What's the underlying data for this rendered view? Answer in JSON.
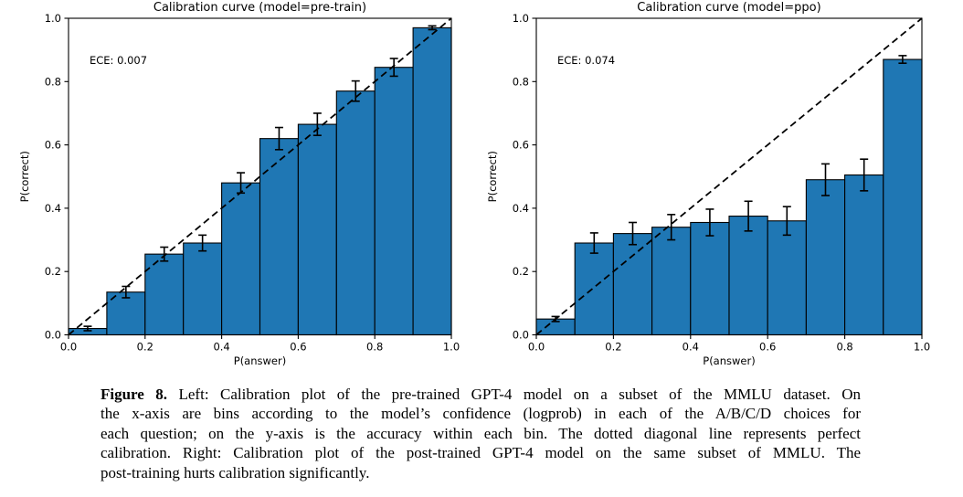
{
  "page": {
    "background_color": "#ffffff",
    "text_color": "#000000"
  },
  "chart_data": [
    {
      "type": "bar",
      "title": "Calibration curve (model=pre-train)",
      "annotation": "ECE: 0.007",
      "xlabel": "P(answer)",
      "ylabel": "P(correct)",
      "xlim": [
        0,
        1
      ],
      "ylim": [
        0,
        1
      ],
      "x_tick_labels": [
        "0.0",
        "0.2",
        "0.4",
        "0.6",
        "0.8",
        "1.0"
      ],
      "y_tick_labels": [
        "0.0",
        "0.2",
        "0.4",
        "0.6",
        "0.8",
        "1.0"
      ],
      "bin_width": 0.1,
      "bin_left_edges": [
        0.0,
        0.1,
        0.2,
        0.3,
        0.4,
        0.5,
        0.6,
        0.7,
        0.8,
        0.9
      ],
      "values": [
        0.02,
        0.135,
        0.255,
        0.29,
        0.48,
        0.62,
        0.665,
        0.77,
        0.845,
        0.97
      ],
      "errors": [
        0.007,
        0.018,
        0.022,
        0.025,
        0.032,
        0.035,
        0.035,
        0.032,
        0.028,
        0.006
      ],
      "diagonal_line": {
        "from": [
          0,
          0
        ],
        "to": [
          1,
          1
        ],
        "style": "dashed",
        "color": "#000000"
      },
      "bar_color": "#1f77b4",
      "edge_color": "#000000",
      "grid": false,
      "legend": null
    },
    {
      "type": "bar",
      "title": "Calibration curve (model=ppo)",
      "annotation": "ECE: 0.074",
      "xlabel": "P(answer)",
      "ylabel": "P(correct)",
      "xlim": [
        0,
        1
      ],
      "ylim": [
        0,
        1
      ],
      "x_tick_labels": [
        "0.0",
        "0.2",
        "0.4",
        "0.6",
        "0.8",
        "1.0"
      ],
      "y_tick_labels": [
        "0.0",
        "0.2",
        "0.4",
        "0.6",
        "0.8",
        "1.0"
      ],
      "bin_width": 0.1,
      "bin_left_edges": [
        0.0,
        0.1,
        0.2,
        0.3,
        0.4,
        0.5,
        0.6,
        0.7,
        0.8,
        0.9
      ],
      "values": [
        0.05,
        0.29,
        0.32,
        0.34,
        0.355,
        0.375,
        0.36,
        0.49,
        0.505,
        0.87
      ],
      "errors": [
        0.008,
        0.032,
        0.035,
        0.04,
        0.042,
        0.047,
        0.045,
        0.05,
        0.05,
        0.012
      ],
      "diagonal_line": {
        "from": [
          0,
          0
        ],
        "to": [
          1,
          1
        ],
        "style": "dashed",
        "color": "#000000"
      },
      "bar_color": "#1f77b4",
      "edge_color": "#000000",
      "grid": false,
      "legend": null
    }
  ],
  "caption": {
    "figure_label": "Figure 8.",
    "lines": [
      "Left: Calibration plot of the pre-trained GPT-4 model on a subset of the MMLU dataset. On",
      "the x-axis are bins according to the model’s confidence (logprob) in each of the A/B/C/D choices for",
      "each question; on the y-axis is the accuracy within each bin. The dotted diagonal line represents perfect",
      "calibration. Right: Calibration plot of the post-trained GPT-4 model on the same subset of MMLU. The",
      "post-training hurts calibration significantly."
    ]
  }
}
